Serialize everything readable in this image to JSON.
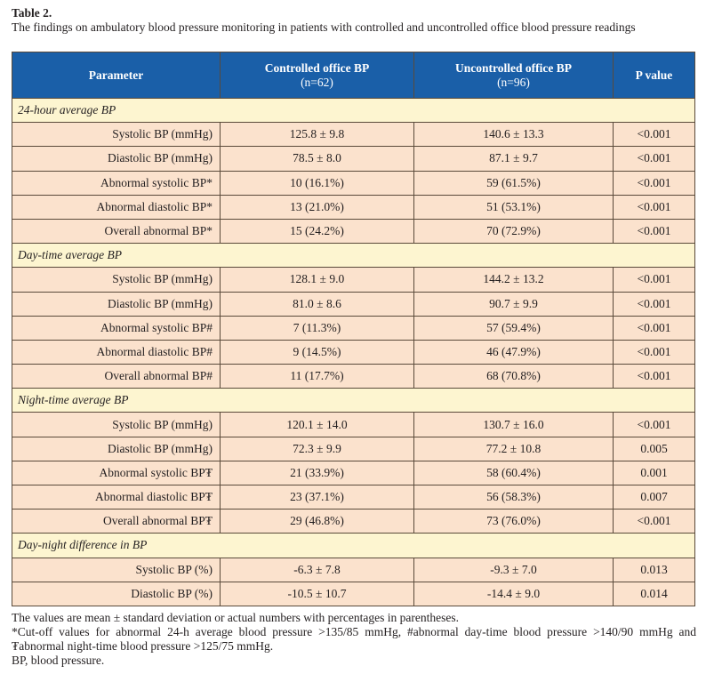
{
  "caption": {
    "label": "Table 2.",
    "title": "The findings on ambulatory blood pressure monitoring in patients with controlled and uncontrolled office blood pressure readings"
  },
  "headers": {
    "parameter": "Parameter",
    "controlled": "Controlled office BP",
    "controlled_n": "(n=62)",
    "uncontrolled": "Uncontrolled office BP",
    "uncontrolled_n": "(n=96)",
    "pvalue": "P value"
  },
  "sections": [
    {
      "title": "24-hour average BP",
      "rows": [
        {
          "param": "Systolic BP (mmHg)",
          "controlled": "125.8  ± 9.8",
          "uncontrolled": "140.6 ± 13.3",
          "p": "<0.001"
        },
        {
          "param": "Diastolic BP (mmHg)",
          "controlled": "78.5 ± 8.0",
          "uncontrolled": "87.1  ± 9.7",
          "p": "<0.001"
        },
        {
          "param": "Abnormal systolic BP*",
          "controlled": "10 (16.1%)",
          "uncontrolled": "59 (61.5%)",
          "p": "<0.001"
        },
        {
          "param": "Abnormal diastolic BP*",
          "controlled": "13 (21.0%)",
          "uncontrolled": "51 (53.1%)",
          "p": "<0.001"
        },
        {
          "param": "Overall abnormal BP*",
          "controlled": "15 (24.2%)",
          "uncontrolled": "70 (72.9%)",
          "p": "<0.001"
        }
      ]
    },
    {
      "title": "Day-time average BP",
      "rows": [
        {
          "param": "Systolic BP (mmHg)",
          "controlled": "128.1 ± 9.0",
          "uncontrolled": "144.2 ± 13.2",
          "p": "<0.001"
        },
        {
          "param": "Diastolic BP (mmHg)",
          "controlled": "81.0 ± 8.6",
          "uncontrolled": "90.7 ± 9.9",
          "p": "<0.001"
        },
        {
          "param": "Abnormal systolic BP#",
          "controlled": "7 (11.3%)",
          "uncontrolled": "57 (59.4%)",
          "p": "<0.001"
        },
        {
          "param": "Abnormal diastolic BP#",
          "controlled": "9 (14.5%)",
          "uncontrolled": "46 (47.9%)",
          "p": "<0.001"
        },
        {
          "param": "Overall abnormal BP#",
          "controlled": "11 (17.7%)",
          "uncontrolled": "68 (70.8%)",
          "p": "<0.001"
        }
      ]
    },
    {
      "title": "Night-time average BP",
      "rows": [
        {
          "param": "Systolic BP (mmHg)",
          "controlled": "120.1 ± 14.0",
          "uncontrolled": "130.7 ± 16.0",
          "p": "<0.001"
        },
        {
          "param": "Diastolic BP (mmHg)",
          "controlled": "72.3 ± 9.9",
          "uncontrolled": "77.2 ± 10.8",
          "p": "0.005"
        },
        {
          "param": "Abnormal systolic BP₮",
          "controlled": "21 (33.9%)",
          "uncontrolled": "58 (60.4%)",
          "p": "0.001"
        },
        {
          "param": "Abnormal diastolic BP₮",
          "controlled": "23 (37.1%)",
          "uncontrolled": "56 (58.3%)",
          "p": "0.007"
        },
        {
          "param": "Overall abnormal BP₮",
          "controlled": "29 (46.8%)",
          "uncontrolled": "73 (76.0%)",
          "p": "<0.001"
        }
      ]
    },
    {
      "title": "Day-night difference in BP",
      "rows": [
        {
          "param": "Systolic BP (%)",
          "controlled": "-6.3 ± 7.8",
          "uncontrolled": "-9.3 ± 7.0",
          "p": "0.013"
        },
        {
          "param": "Diastolic BP (%)",
          "controlled": "-10.5 ± 10.7",
          "uncontrolled": "-14.4 ± 9.0",
          "p": "0.014"
        }
      ]
    }
  ],
  "footnotes": [
    "The values are mean ± standard deviation or actual numbers with percentages in parentheses.",
    "*Cut-off values for abnormal 24-h average blood pressure >135/85 mmHg, #abnormal day-time blood pressure >140/90 mmHg and ₮abnormal night-time blood pressure >125/75 mmHg.",
    "BP, blood pressure."
  ]
}
